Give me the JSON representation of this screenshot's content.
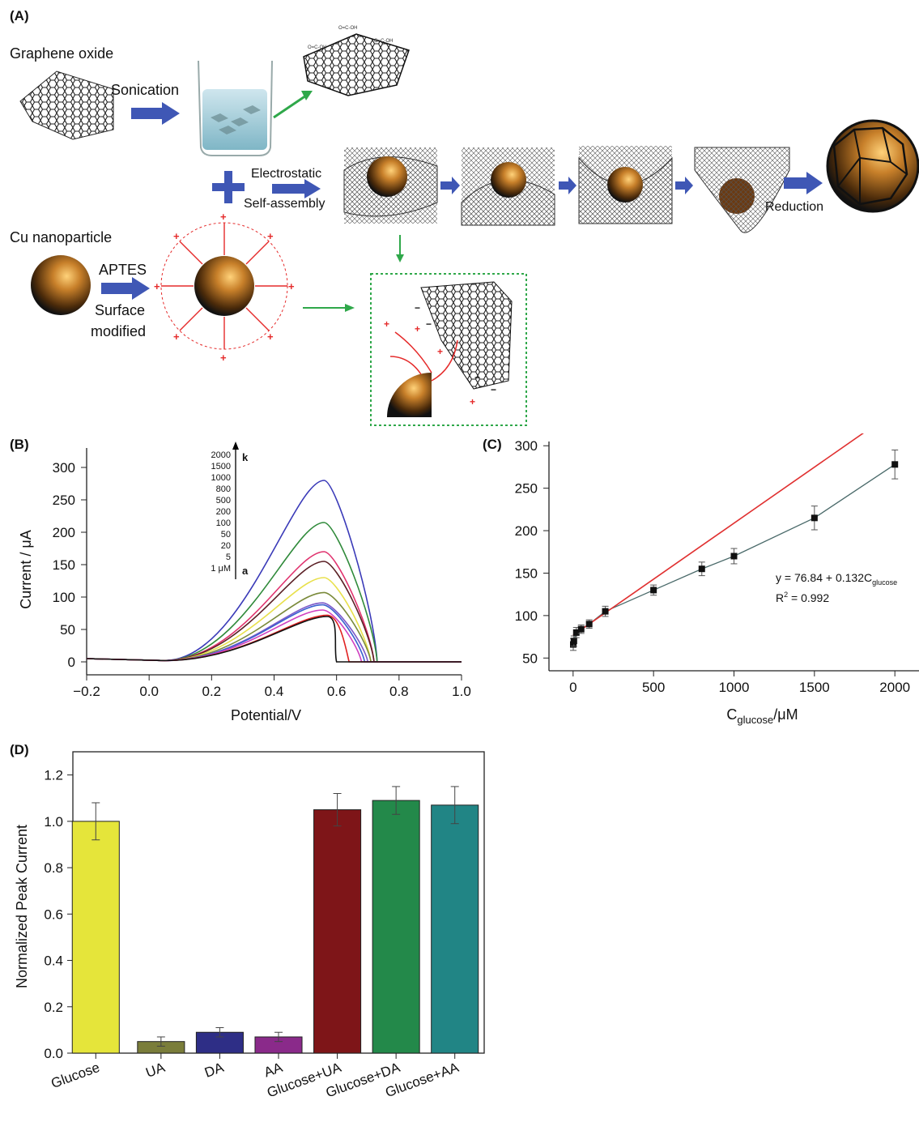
{
  "panels": {
    "a": {
      "label": "(A)",
      "texts": {
        "graphene_oxide": "Graphene oxide",
        "sonication": "Sonication",
        "electrostatic": "Electrostatic",
        "self_assembly": "Self-assembly",
        "reduction": "Reduction",
        "cu_nanoparticle": "Cu nanoparticle",
        "aptes": "APTES",
        "surface": "Surface",
        "modified": "modified"
      }
    },
    "b": {
      "label": "(B)"
    },
    "c": {
      "label": "(C)"
    },
    "d": {
      "label": "(D)"
    }
  },
  "chart_data": [
    {
      "panel": "B",
      "type": "line",
      "xlabel": "Potential/V",
      "ylabel": "Current / μA",
      "xlim": [
        -0.2,
        1.0
      ],
      "ylim": [
        -20,
        330
      ],
      "xticks": [
        -0.2,
        0.0,
        0.2,
        0.4,
        0.6,
        0.8,
        1.0
      ],
      "yticks": [
        0,
        50,
        100,
        150,
        200,
        250,
        300
      ],
      "xticklabels": [
        "−0.2",
        "0.0",
        "0.2",
        "0.4",
        "0.6",
        "0.8",
        "1.0"
      ],
      "yticklabels": [
        "0",
        "50",
        "100",
        "150",
        "200",
        "250",
        "300"
      ],
      "legend": {
        "entries": [
          "2000",
          "1500",
          "1000",
          "800",
          "500",
          "200",
          "100",
          "50",
          "20",
          "5",
          "1 μM"
        ],
        "top_label": "k",
        "bottom_label": "a"
      },
      "series": [
        {
          "concentration": 2000,
          "peak_x": 0.56,
          "peak": 280,
          "end_x": 0.73,
          "color": "#3a3ab8"
        },
        {
          "concentration": 1500,
          "peak_x": 0.56,
          "peak": 215,
          "end_x": 0.73,
          "color": "#2f8a3a"
        },
        {
          "concentration": 1000,
          "peak_x": 0.56,
          "peak": 170,
          "end_x": 0.72,
          "color": "#e0326e"
        },
        {
          "concentration": 800,
          "peak_x": 0.56,
          "peak": 155,
          "end_x": 0.72,
          "color": "#5a1f24"
        },
        {
          "concentration": 500,
          "peak_x": 0.56,
          "peak": 130,
          "end_x": 0.71,
          "color": "#e8e04a"
        },
        {
          "concentration": 200,
          "peak_x": 0.56,
          "peak": 107,
          "end_x": 0.71,
          "color": "#7a8a3a"
        },
        {
          "concentration": 100,
          "peak_x": 0.555,
          "peak": 91,
          "end_x": 0.7,
          "color": "#7b58c8"
        },
        {
          "concentration": 50,
          "peak_x": 0.555,
          "peak": 88,
          "end_x": 0.69,
          "color": "#3a60d0"
        },
        {
          "concentration": 20,
          "peak_x": 0.555,
          "peak": 80,
          "end_x": 0.68,
          "color": "#d040c0"
        },
        {
          "concentration": 5,
          "peak_x": 0.57,
          "peak": 72,
          "end_x": 0.64,
          "color": "#e02020"
        },
        {
          "concentration": 1,
          "peak_x": 0.57,
          "peak": 70,
          "end_x": 0.6,
          "color": "#111111"
        }
      ]
    },
    {
      "panel": "C",
      "type": "scatter",
      "xlabel": "C",
      "xlabel_sub": "glucose",
      "xlabel_suffix": "/μM",
      "ylabel": "",
      "xlim": [
        -150,
        2150
      ],
      "ylim": [
        35,
        305
      ],
      "xticks": [
        0,
        500,
        1000,
        1500,
        2000
      ],
      "yticks": [
        50,
        100,
        150,
        200,
        250,
        300
      ],
      "x": [
        1,
        5,
        20,
        50,
        100,
        200,
        500,
        800,
        1000,
        1500,
        2000
      ],
      "y": [
        66,
        70,
        80,
        84,
        90,
        105,
        130,
        155,
        170,
        215,
        278
      ],
      "err": [
        7,
        6,
        6,
        5,
        5,
        6,
        6,
        8,
        9,
        14,
        17
      ],
      "fit": {
        "intercept": 76.84,
        "slope": 0.132,
        "color": "#e03030"
      },
      "equation": "y = 76.84 + 0.132C",
      "equation_sub": "glucose",
      "r2_label": "R",
      "r2_sup": "2",
      "r2_value": " = 0.992"
    },
    {
      "panel": "D",
      "type": "bar",
      "ylabel": "Normalized Peak Current",
      "ylim": [
        0,
        1.3
      ],
      "yticks": [
        0.0,
        0.2,
        0.4,
        0.6,
        0.8,
        1.0,
        1.2
      ],
      "yticklabels": [
        "0.0",
        "0.2",
        "0.4",
        "0.6",
        "0.8",
        "1.0",
        "1.2"
      ],
      "categories": [
        "Glucose",
        "UA",
        "DA",
        "AA",
        "Glucose+UA",
        "Glucose+DA",
        "Glucose+AA"
      ],
      "values": [
        1.0,
        0.05,
        0.09,
        0.07,
        1.05,
        1.09,
        1.07
      ],
      "errors": [
        0.08,
        0.02,
        0.02,
        0.02,
        0.07,
        0.06,
        0.08
      ],
      "colors": [
        "#e5e53a",
        "#7a7d3a",
        "#2e2e86",
        "#8a2a8a",
        "#7e1518",
        "#23894a",
        "#218585"
      ]
    }
  ]
}
